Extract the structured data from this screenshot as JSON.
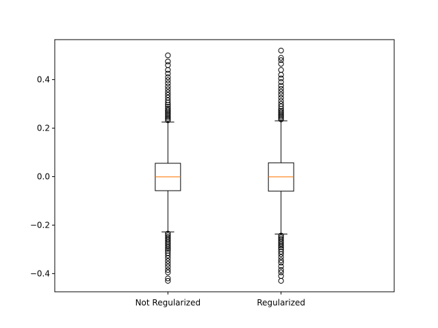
{
  "chart_data": {
    "type": "box",
    "categories": [
      "Not Regularized",
      "Regularized"
    ],
    "yticks": [
      "−0.4",
      "−0.2",
      "0.0",
      "0.2",
      "0.4"
    ],
    "ytick_values": [
      -0.4,
      -0.2,
      0.0,
      0.2,
      0.4
    ],
    "ylim": [
      -0.475,
      0.565
    ],
    "grid": false,
    "median_color": "#ff7f0e",
    "series": [
      {
        "q1": -0.058,
        "median": -0.001,
        "q3": 0.055,
        "whisker_low": -0.228,
        "whisker_high": 0.225,
        "outliers": [
          0.232,
          0.238,
          0.244,
          0.25,
          0.256,
          0.262,
          0.268,
          0.274,
          0.28,
          0.288,
          0.296,
          0.305,
          0.315,
          0.326,
          0.337,
          0.348,
          0.36,
          0.372,
          0.385,
          0.398,
          0.41,
          0.425,
          0.44,
          0.46,
          0.475,
          0.5,
          -0.235,
          -0.242,
          -0.249,
          -0.256,
          -0.263,
          -0.27,
          -0.277,
          -0.284,
          -0.291,
          -0.298,
          -0.306,
          -0.315,
          -0.325,
          -0.336,
          -0.348,
          -0.36,
          -0.372,
          -0.385,
          -0.395,
          -0.42,
          -0.43
        ]
      },
      {
        "q1": -0.06,
        "median": -0.001,
        "q3": 0.057,
        "whisker_low": -0.237,
        "whisker_high": 0.23,
        "outliers": [
          0.236,
          0.242,
          0.248,
          0.254,
          0.26,
          0.266,
          0.272,
          0.28,
          0.29,
          0.3,
          0.312,
          0.325,
          0.338,
          0.35,
          0.362,
          0.375,
          0.39,
          0.405,
          0.42,
          0.44,
          0.465,
          0.48,
          0.49,
          0.52,
          -0.243,
          -0.25,
          -0.257,
          -0.264,
          -0.271,
          -0.278,
          -0.285,
          -0.292,
          -0.3,
          -0.31,
          -0.32,
          -0.332,
          -0.345,
          -0.355,
          -0.37,
          -0.385,
          -0.395,
          -0.41,
          -0.43
        ]
      }
    ]
  }
}
